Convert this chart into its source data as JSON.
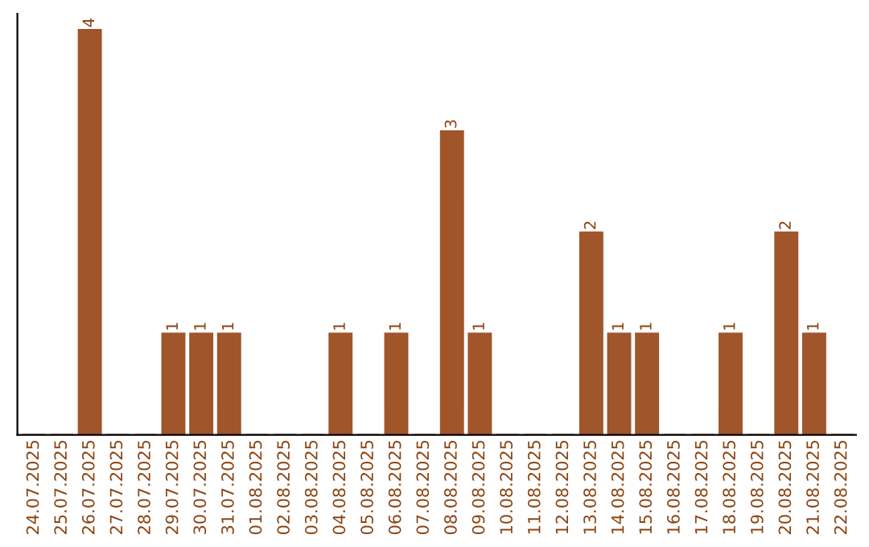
{
  "chart_data": {
    "type": "bar",
    "categories": [
      "24.07.2025",
      "25.07.2025",
      "26.07.2025",
      "27.07.2025",
      "28.07.2025",
      "29.07.2025",
      "30.07.2025",
      "31.07.2025",
      "01.08.2025",
      "02.08.2025",
      "03.08.2025",
      "04.08.2025",
      "05.08.2025",
      "06.08.2025",
      "07.08.2025",
      "08.08.2025",
      "09.08.2025",
      "10.08.2025",
      "11.08.2025",
      "12.08.2025",
      "13.08.2025",
      "14.08.2025",
      "15.08.2025",
      "16.08.2025",
      "17.08.2025",
      "18.08.2025",
      "19.08.2025",
      "20.08.2025",
      "21.08.2025",
      "22.08.2025"
    ],
    "values": [
      0,
      0,
      4,
      0,
      0,
      1,
      1,
      1,
      0,
      0,
      0,
      1,
      0,
      1,
      0,
      3,
      1,
      0,
      0,
      0,
      2,
      1,
      1,
      0,
      0,
      1,
      0,
      2,
      1,
      0
    ],
    "value_labels": [
      null,
      null,
      "4",
      null,
      null,
      "1",
      "1",
      "1",
      null,
      null,
      null,
      "1",
      null,
      "1",
      null,
      "3",
      "1",
      null,
      null,
      null,
      "2",
      "1",
      "1",
      null,
      null,
      "1",
      null,
      "2",
      "1",
      null
    ],
    "color": "#a0552b",
    "tick_labels": "x",
    "grid": false
  }
}
